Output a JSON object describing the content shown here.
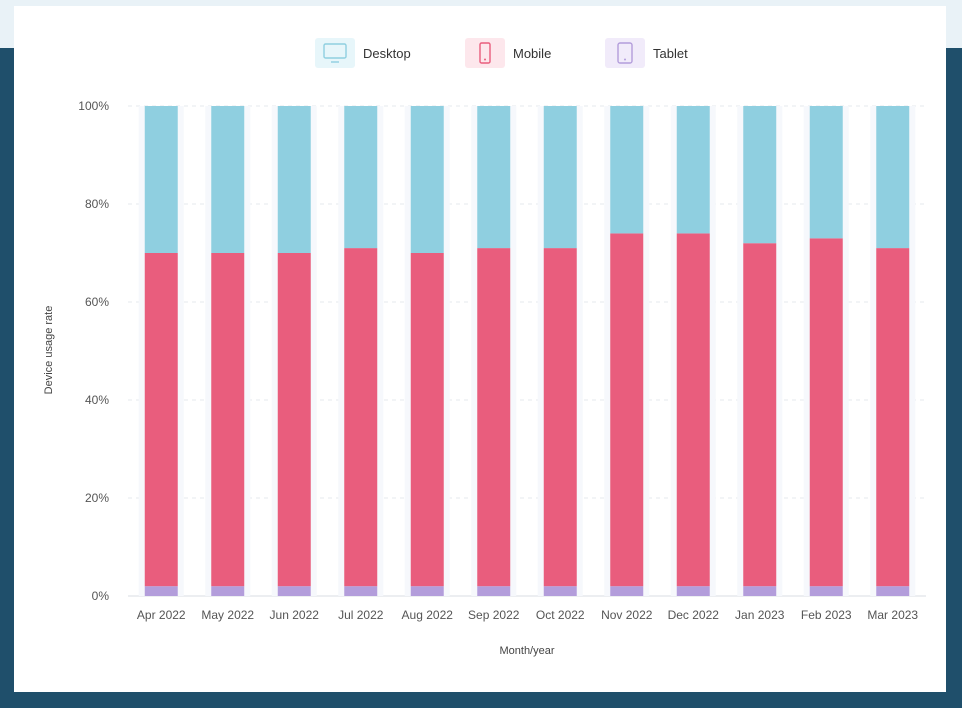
{
  "colors": {
    "desktop": "#8fcfe0",
    "mobile": "#e95d7d",
    "tablet": "#b39ddb",
    "desktop_icon_bg": "#e7f6fa",
    "mobile_icon_bg": "#fde7ec",
    "tablet_icon_bg": "#f1ebfa"
  },
  "legend": [
    {
      "label": "Desktop",
      "icon": "desktop-icon"
    },
    {
      "label": "Mobile",
      "icon": "mobile-icon"
    },
    {
      "label": "Tablet",
      "icon": "tablet-icon"
    }
  ],
  "chart_data": {
    "type": "bar",
    "stacked": true,
    "xlabel": "Month/year",
    "ylabel": "Device usage rate",
    "ylim": [
      0,
      100
    ],
    "yticks": [
      "0%",
      "20%",
      "40%",
      "60%",
      "80%",
      "100%"
    ],
    "categories": [
      "Apr 2022",
      "May 2022",
      "Jun 2022",
      "Jul 2022",
      "Aug 2022",
      "Sep 2022",
      "Oct 2022",
      "Nov 2022",
      "Dec 2022",
      "Jan 2023",
      "Feb 2023",
      "Mar 2023"
    ],
    "series": [
      {
        "name": "Tablet",
        "values": [
          2,
          2,
          2,
          2,
          2,
          2,
          2,
          2,
          2,
          2,
          2,
          2
        ]
      },
      {
        "name": "Mobile",
        "values": [
          68,
          68,
          68,
          69,
          68,
          69,
          69,
          72,
          72,
          70,
          71,
          69
        ]
      },
      {
        "name": "Desktop",
        "values": [
          30,
          30,
          30,
          29,
          30,
          29,
          29,
          26,
          26,
          28,
          27,
          29
        ]
      }
    ],
    "grid": true,
    "legend_position": "top"
  }
}
